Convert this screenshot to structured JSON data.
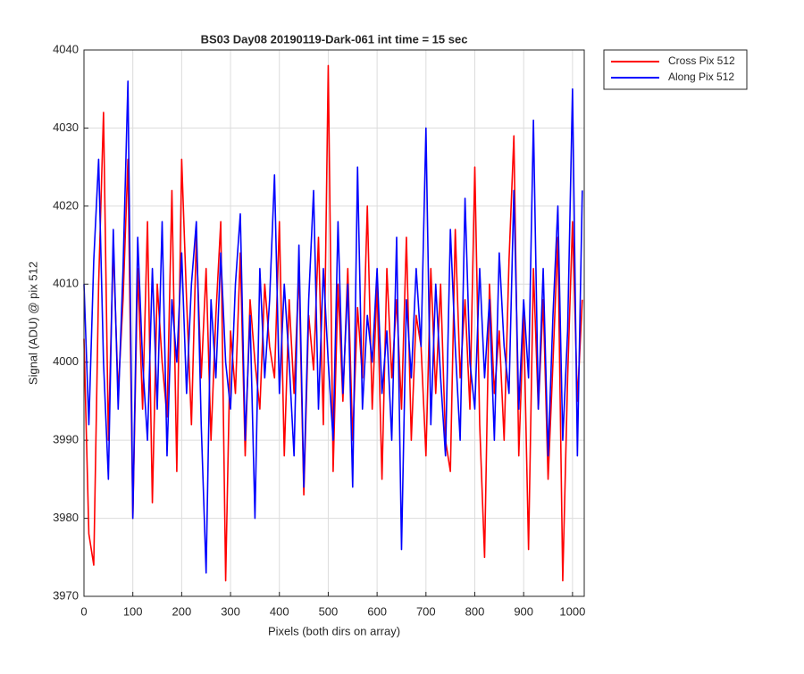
{
  "chart_data": {
    "type": "line",
    "title": "BS03 Day08 20190119-Dark-061 int time = 15 sec",
    "xlabel": "Pixels (both dirs on array)",
    "ylabel": "Signal (ADU) @ pix 512",
    "x": [
      0,
      10,
      20,
      30,
      40,
      50,
      60,
      70,
      80,
      90,
      100,
      110,
      120,
      130,
      140,
      150,
      160,
      170,
      180,
      190,
      200,
      210,
      220,
      230,
      240,
      250,
      260,
      270,
      280,
      290,
      300,
      310,
      320,
      330,
      340,
      350,
      360,
      370,
      380,
      390,
      400,
      410,
      420,
      430,
      440,
      450,
      460,
      470,
      480,
      490,
      500,
      510,
      520,
      530,
      540,
      550,
      560,
      570,
      580,
      590,
      600,
      610,
      620,
      630,
      640,
      650,
      660,
      670,
      680,
      690,
      700,
      710,
      720,
      730,
      740,
      750,
      760,
      770,
      780,
      790,
      800,
      810,
      820,
      830,
      840,
      850,
      860,
      870,
      880,
      890,
      900,
      910,
      920,
      930,
      940,
      950,
      960,
      970,
      980,
      990,
      1000,
      1010,
      1020
    ],
    "series": [
      {
        "name": "Cross Pix 512",
        "color": "#ff0000",
        "values": [
          4003,
          3978,
          3974,
          4010,
          4032,
          3990,
          4015,
          3996,
          4008,
          4026,
          3980,
          4012,
          3994,
          4018,
          3982,
          4010,
          4000,
          3993,
          4022,
          3986,
          4026,
          4008,
          3992,
          4016,
          3998,
          4012,
          3990,
          4006,
          4018,
          3972,
          4004,
          3996,
          4014,
          3988,
          4008,
          4000,
          3994,
          4010,
          4002,
          3998,
          4018,
          3988,
          4008,
          3996,
          4012,
          3983,
          4006,
          3999,
          4016,
          3992,
          4038,
          3986,
          4010,
          3995,
          4012,
          3990,
          4007,
          3998,
          4020,
          3994,
          4010,
          3985,
          4012,
          3998,
          4008,
          3994,
          4016,
          3990,
          4006,
          4002,
          3988,
          4012,
          3996,
          4010,
          3990,
          3986,
          4017,
          3998,
          4008,
          3994,
          4025,
          3992,
          3975,
          4010,
          3996,
          4004,
          3990,
          4013,
          4029,
          3988,
          4006,
          3976,
          4012,
          3994,
          4008,
          3985,
          4000,
          4016,
          3972,
          3998,
          4018,
          3995,
          4008
        ]
      },
      {
        "name": "Along Pix 512",
        "color": "#0000ff",
        "values": [
          4010,
          3992,
          4013,
          4026,
          4000,
          3985,
          4017,
          3994,
          4012,
          4036,
          3980,
          4016,
          4000,
          3990,
          4012,
          3994,
          4018,
          3988,
          4008,
          4000,
          4014,
          3996,
          4010,
          4018,
          3992,
          3973,
          4008,
          3998,
          4014,
          4000,
          3994,
          4010,
          4019,
          3990,
          4006,
          3980,
          4012,
          3998,
          4008,
          4024,
          3996,
          4010,
          4000,
          3988,
          4015,
          3984,
          4008,
          4022,
          3994,
          4012,
          4000,
          3990,
          4018,
          3996,
          4010,
          3984,
          4025,
          3994,
          4006,
          4000,
          4012,
          3996,
          4004,
          3990,
          4016,
          3976,
          4008,
          3998,
          4012,
          4002,
          4030,
          3992,
          4010,
          3998,
          3988,
          4017,
          4002,
          3990,
          4021,
          4000,
          3994,
          4012,
          3998,
          4008,
          3990,
          4014,
          4002,
          3996,
          4022,
          3994,
          4008,
          3998,
          4031,
          3994,
          4012,
          3988,
          4006,
          4020,
          3990,
          4004,
          4035,
          3988,
          4022
        ]
      }
    ],
    "xlim": [
      0,
      1024
    ],
    "xticks": [
      0,
      100,
      200,
      300,
      400,
      500,
      600,
      700,
      800,
      900,
      1000
    ],
    "ylim": [
      3970,
      4040
    ],
    "yticks": [
      3970,
      3980,
      3990,
      4000,
      4010,
      4020,
      4030,
      4040
    ],
    "grid": true,
    "legend": "northeastoutside"
  }
}
